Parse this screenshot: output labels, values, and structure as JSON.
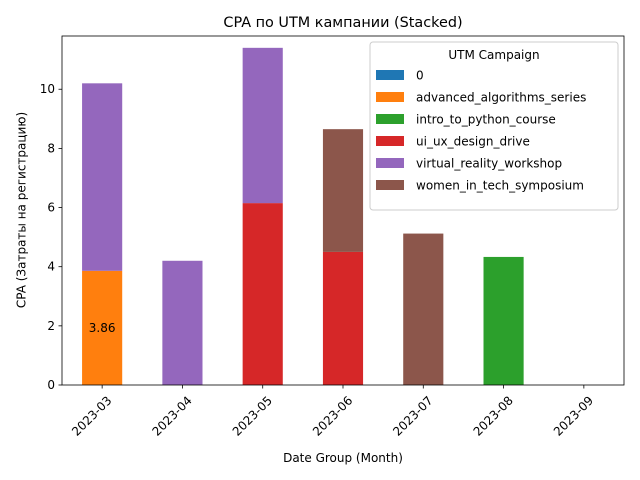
{
  "chart_data": {
    "type": "bar",
    "stacked": true,
    "title": "CPA по UTM кампании (Stacked)",
    "xlabel": "Date Group (Month)",
    "ylabel": "CPA (Затраты на регистрацию)",
    "ylim": [
      0,
      11.8
    ],
    "yticks": [
      0,
      2,
      4,
      6,
      8,
      10
    ],
    "categories": [
      "2023-03",
      "2023-04",
      "2023-05",
      "2023-06",
      "2023-07",
      "2023-08",
      "2023-09"
    ],
    "legend": {
      "title": "UTM Campaign",
      "position": "top-right"
    },
    "series": [
      {
        "name": "0",
        "color": "#1f77b4",
        "values": [
          0,
          0,
          0,
          0,
          0,
          0,
          0
        ]
      },
      {
        "name": "advanced_algorithms_series",
        "color": "#ff7f0e",
        "values": [
          3.86,
          0,
          0,
          0,
          0,
          0,
          0
        ]
      },
      {
        "name": "intro_to_python_course",
        "color": "#2ca02c",
        "values": [
          0,
          0,
          0,
          0,
          0,
          4.33,
          0
        ]
      },
      {
        "name": "ui_ux_design_drive",
        "color": "#d62728",
        "values": [
          0,
          0,
          6.15,
          4.5,
          0,
          0,
          0
        ]
      },
      {
        "name": "virtual_reality_workshop",
        "color": "#9467bd",
        "values": [
          6.34,
          4.2,
          5.25,
          0,
          0,
          0,
          0
        ]
      },
      {
        "name": "women_in_tech_symposium",
        "color": "#8c564b",
        "values": [
          0,
          0,
          0,
          4.15,
          5.12,
          0,
          0
        ]
      }
    ],
    "annotations": [
      {
        "category": "2023-03",
        "text": "3.86"
      }
    ]
  }
}
